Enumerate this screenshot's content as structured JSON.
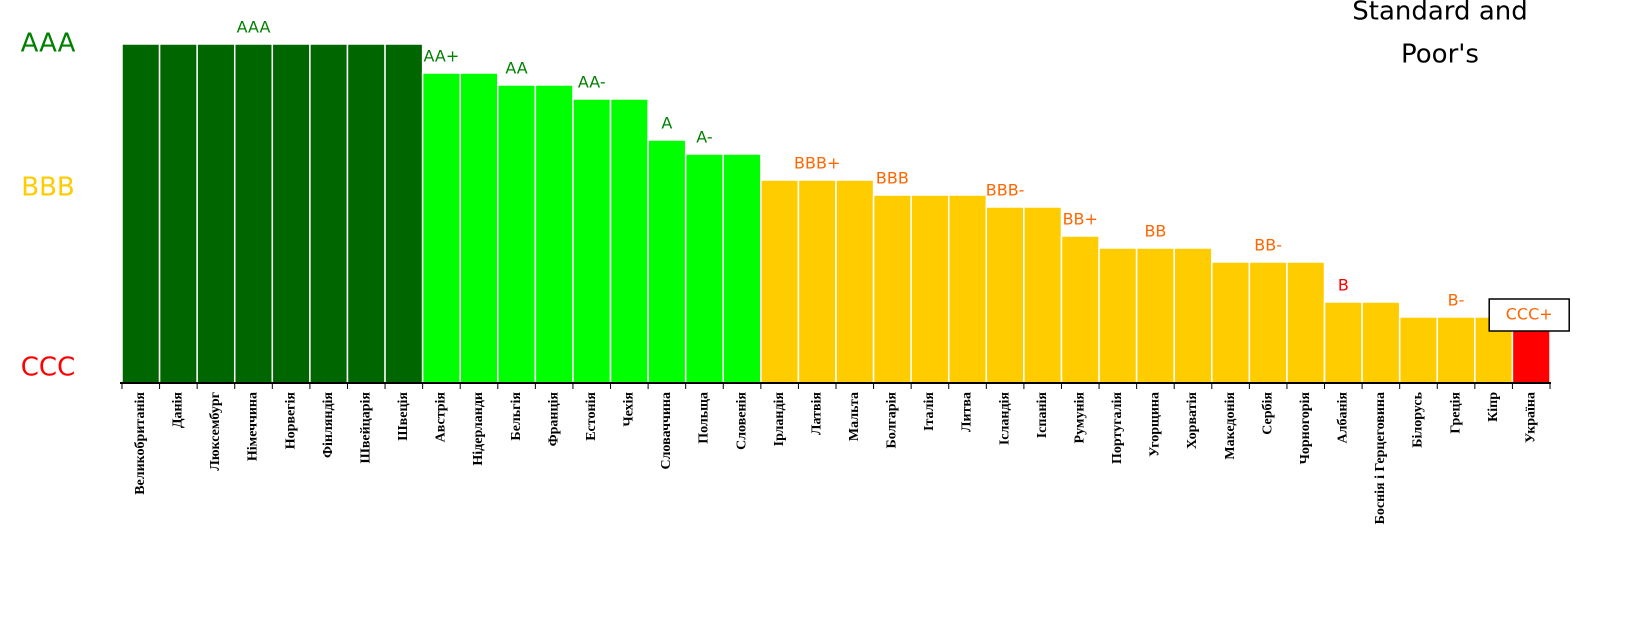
{
  "chart_data": {
    "type": "bar",
    "title_lines": [
      "Standard and",
      "Poor's"
    ],
    "categories": [
      "Великобританія",
      "Данія",
      "Люксембург",
      "Німеччина",
      "Норвегія",
      "Фінляндія",
      "Швейцарія",
      "Швеція",
      "Австрія",
      "Нідерланди",
      "Бельгія",
      "Франція",
      "Естонія",
      "Чехія",
      "Словаччина",
      "Польща",
      "Словенія",
      "Ірландія",
      "Латвія",
      "Мальта",
      "Болгарія",
      "Італія",
      "Литва",
      "Ісландія",
      "Іспанія",
      "Румунія",
      "Португалія",
      "Угорщина",
      "Хорватія",
      "Македонія",
      "Сербія",
      "Чорногорія",
      "Албанія",
      "Боснія і Герцеговина",
      "Білорусь",
      "Греція",
      "Кіпр",
      "Україна"
    ],
    "values": [
      339,
      339,
      339,
      339,
      339,
      339,
      339,
      339,
      310,
      310,
      298,
      298,
      284,
      284,
      243,
      229,
      229,
      203,
      203,
      203,
      188,
      188,
      188,
      176,
      176,
      147,
      135,
      135,
      135,
      121,
      121,
      121,
      81,
      81,
      66,
      66,
      66,
      54
    ],
    "value_labels": [
      null,
      null,
      null,
      "AAA",
      null,
      null,
      null,
      null,
      "AA+",
      null,
      "AA",
      null,
      "AA-",
      null,
      "A",
      "A-",
      null,
      null,
      "BBB+",
      null,
      "BBB",
      null,
      null,
      "BBB-",
      null,
      "BB+",
      null,
      "BB",
      null,
      null,
      "BB-",
      null,
      "B",
      null,
      null,
      "B-",
      null,
      "CCC+"
    ],
    "value_label_colors": [
      null,
      null,
      null,
      "#008000",
      null,
      null,
      null,
      null,
      "#008000",
      null,
      "#008000",
      null,
      "#008000",
      null,
      "#008000",
      "#008000",
      null,
      null,
      "#ff6600",
      null,
      "#ff6600",
      null,
      null,
      "#ff6600",
      null,
      "#ff6600",
      null,
      "#ff6600",
      null,
      null,
      "#ff6600",
      null,
      "#ff0000",
      null,
      null,
      "#ff6600",
      null,
      "#ff6600"
    ],
    "colors": [
      "#006600",
      "#006600",
      "#006600",
      "#006600",
      "#006600",
      "#006600",
      "#006600",
      "#006600",
      "#00ff00",
      "#00ff00",
      "#00ff00",
      "#00ff00",
      "#00ff00",
      "#00ff00",
      "#00ff00",
      "#00ff00",
      "#00ff00",
      "#ffcc00",
      "#ffcc00",
      "#ffcc00",
      "#ffcc00",
      "#ffcc00",
      "#ffcc00",
      "#ffcc00",
      "#ffcc00",
      "#ffcc00",
      "#ffcc00",
      "#ffcc00",
      "#ffcc00",
      "#ffcc00",
      "#ffcc00",
      "#ffcc00",
      "#ffcc00",
      "#ffcc00",
      "#ffcc00",
      "#ffcc00",
      "#ffcc00",
      "#ff0000"
    ],
    "ylim": [
      0,
      339
    ],
    "yticks": [
      {
        "value": 339,
        "label": "AAA"
      },
      {
        "value": 195,
        "label": "BBB"
      },
      {
        "value": 15,
        "label": "CCC"
      }
    ],
    "ytick_colors": [
      "#008000",
      "#ffcc00",
      "#ff0000"
    ]
  }
}
